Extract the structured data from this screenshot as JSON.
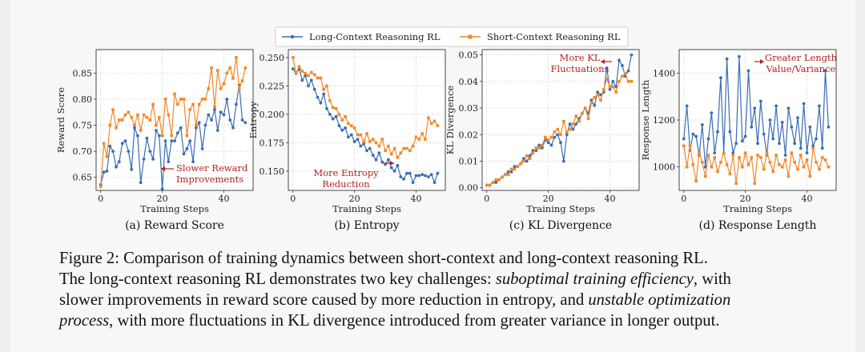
{
  "legend": {
    "long_label": "Long-Context Reasoning RL",
    "short_label": "Short-Context Reasoning RL",
    "long_color": "#3a6db5",
    "short_color": "#f08a2c"
  },
  "chart_data": [
    {
      "type": "line",
      "id": "reward",
      "subtitle": "(a) Reward Score",
      "xlabel": "Training Steps",
      "ylabel": "Reward Score",
      "xlim": [
        -1.5,
        49.5
      ],
      "ylim": [
        0.625,
        0.895
      ],
      "xticks": [
        0,
        20,
        40
      ],
      "yticks": [
        0.65,
        0.7,
        0.75,
        0.8,
        0.85
      ],
      "ytick_labels": [
        "0.65",
        "0.70",
        "0.75",
        "0.80",
        "0.85"
      ],
      "grid": true,
      "x": [
        0,
        1,
        2,
        3,
        4,
        5,
        6,
        7,
        8,
        9,
        10,
        11,
        12,
        13,
        14,
        15,
        16,
        17,
        18,
        19,
        20,
        21,
        22,
        23,
        24,
        25,
        26,
        27,
        28,
        29,
        30,
        31,
        32,
        33,
        34,
        35,
        36,
        37,
        38,
        39,
        40,
        41,
        42,
        43,
        44,
        45,
        46,
        47
      ],
      "series": [
        {
          "name": "Long-Context Reasoning RL",
          "values": [
            0.636,
            0.66,
            0.662,
            0.71,
            0.7,
            0.67,
            0.68,
            0.715,
            0.72,
            0.7,
            0.665,
            0.745,
            0.73,
            0.64,
            0.685,
            0.725,
            0.7,
            0.685,
            0.74,
            0.73,
            0.628,
            0.72,
            0.68,
            0.72,
            0.72,
            0.735,
            0.745,
            0.695,
            0.705,
            0.72,
            0.68,
            0.745,
            0.755,
            0.705,
            0.75,
            0.77,
            0.76,
            0.78,
            0.74,
            0.775,
            0.77,
            0.8,
            0.76,
            0.745,
            0.79,
            0.827,
            0.76,
            0.755
          ]
        },
        {
          "name": "Short-Context Reasoning RL",
          "values": [
            0.632,
            0.715,
            0.69,
            0.75,
            0.78,
            0.745,
            0.76,
            0.76,
            0.77,
            0.775,
            0.765,
            0.75,
            0.77,
            0.74,
            0.77,
            0.765,
            0.76,
            0.79,
            0.75,
            0.765,
            0.73,
            0.8,
            0.77,
            0.73,
            0.81,
            0.79,
            0.8,
            0.8,
            0.73,
            0.78,
            0.79,
            0.75,
            0.79,
            0.8,
            0.8,
            0.82,
            0.86,
            0.785,
            0.855,
            0.82,
            0.83,
            0.85,
            0.86,
            0.84,
            0.88,
            0.82,
            0.835,
            0.86
          ]
        }
      ],
      "annotation": {
        "text": [
          "Slower Reward",
          "Improvements"
        ],
        "color": "#b22222"
      }
    },
    {
      "type": "line",
      "id": "entropy",
      "subtitle": "(b) Entropy",
      "xlabel": "Training Steps",
      "ylabel": "Entropy",
      "xlim": [
        -1.5,
        49.5
      ],
      "ylim": [
        0.133,
        0.257
      ],
      "xticks": [
        0,
        20,
        40
      ],
      "yticks": [
        0.15,
        0.175,
        0.2,
        0.225,
        0.25
      ],
      "ytick_labels": [
        "0.150",
        "0.175",
        "0.200",
        "0.225",
        "0.250"
      ],
      "grid": true,
      "x": [
        0,
        1,
        2,
        3,
        4,
        5,
        6,
        7,
        8,
        9,
        10,
        11,
        12,
        13,
        14,
        15,
        16,
        17,
        18,
        19,
        20,
        21,
        22,
        23,
        24,
        25,
        26,
        27,
        28,
        29,
        30,
        31,
        32,
        33,
        34,
        35,
        36,
        37,
        38,
        39,
        40,
        41,
        42,
        43,
        44,
        45,
        46,
        47
      ],
      "series": [
        {
          "name": "Long-Context Reasoning RL",
          "values": [
            0.24,
            0.236,
            0.24,
            0.23,
            0.234,
            0.225,
            0.23,
            0.222,
            0.215,
            0.21,
            0.218,
            0.205,
            0.2,
            0.196,
            0.198,
            0.19,
            0.186,
            0.188,
            0.18,
            0.182,
            0.176,
            0.178,
            0.172,
            0.174,
            0.168,
            0.17,
            0.164,
            0.16,
            0.166,
            0.158,
            0.156,
            0.16,
            0.153,
            0.15,
            0.155,
            0.145,
            0.143,
            0.148,
            0.148,
            0.14,
            0.146,
            0.146,
            0.147,
            0.146,
            0.145,
            0.147,
            0.14,
            0.148
          ]
        },
        {
          "name": "Short-Context Reasoning RL",
          "values": [
            0.25,
            0.236,
            0.242,
            0.238,
            0.236,
            0.234,
            0.237,
            0.235,
            0.232,
            0.232,
            0.222,
            0.225,
            0.212,
            0.206,
            0.205,
            0.2,
            0.195,
            0.198,
            0.192,
            0.19,
            0.188,
            0.182,
            0.182,
            0.176,
            0.183,
            0.176,
            0.178,
            0.175,
            0.172,
            0.178,
            0.168,
            0.172,
            0.165,
            0.17,
            0.162,
            0.166,
            0.17,
            0.17,
            0.168,
            0.172,
            0.18,
            0.178,
            0.183,
            0.178,
            0.197,
            0.192,
            0.194,
            0.19
          ]
        }
      ],
      "annotation": {
        "text": [
          "More Entropy",
          "Reduction"
        ],
        "color": "#b22222"
      }
    },
    {
      "type": "line",
      "id": "kl",
      "subtitle": "(c) KL Divergence",
      "xlabel": "Training Steps",
      "ylabel": "KL Divergence",
      "xlim": [
        -1.5,
        49.5
      ],
      "ylim": [
        -0.001,
        0.052
      ],
      "xticks": [
        0,
        20,
        40
      ],
      "yticks": [
        0.0,
        0.01,
        0.02,
        0.03,
        0.04,
        0.05
      ],
      "ytick_labels": [
        "0.00",
        "0.01",
        "0.02",
        "0.03",
        "0.04",
        "0.05"
      ],
      "grid": true,
      "x": [
        0,
        1,
        2,
        3,
        4,
        5,
        6,
        7,
        8,
        9,
        10,
        11,
        12,
        13,
        14,
        15,
        16,
        17,
        18,
        19,
        20,
        21,
        22,
        23,
        24,
        25,
        26,
        27,
        28,
        29,
        30,
        31,
        32,
        33,
        34,
        35,
        36,
        37,
        38,
        39,
        40,
        41,
        42,
        43,
        44,
        45,
        46,
        47
      ],
      "series": [
        {
          "name": "Long-Context Reasoning RL",
          "values": [
            0.001,
            0.001,
            0.002,
            0.002,
            0.003,
            0.004,
            0.005,
            0.006,
            0.006,
            0.008,
            0.008,
            0.009,
            0.011,
            0.01,
            0.012,
            0.014,
            0.014,
            0.016,
            0.015,
            0.018,
            0.017,
            0.016,
            0.019,
            0.02,
            0.017,
            0.01,
            0.02,
            0.024,
            0.022,
            0.024,
            0.026,
            0.028,
            0.03,
            0.028,
            0.033,
            0.031,
            0.036,
            0.035,
            0.036,
            0.045,
            0.037,
            0.04,
            0.038,
            0.048,
            0.046,
            0.042,
            0.044,
            0.05
          ]
        },
        {
          "name": "Short-Context Reasoning RL",
          "values": [
            0.001,
            0.001,
            0.002,
            0.003,
            0.003,
            0.004,
            0.005,
            0.005,
            0.007,
            0.007,
            0.008,
            0.009,
            0.01,
            0.012,
            0.011,
            0.013,
            0.015,
            0.015,
            0.016,
            0.019,
            0.018,
            0.019,
            0.021,
            0.022,
            0.02,
            0.025,
            0.021,
            0.022,
            0.024,
            0.027,
            0.025,
            0.028,
            0.03,
            0.026,
            0.032,
            0.034,
            0.035,
            0.033,
            0.037,
            0.041,
            0.038,
            0.038,
            0.036,
            0.04,
            0.042,
            0.043,
            0.04,
            0.04
          ]
        }
      ],
      "annotation": {
        "text": [
          "More KL",
          "Fluctuations"
        ],
        "color": "#b22222"
      }
    },
    {
      "type": "line",
      "id": "resp",
      "subtitle": "(d) Response Length",
      "xlabel": "Training Steps",
      "ylabel": "Response Length",
      "xlim": [
        -1.5,
        49.5
      ],
      "ylim": [
        900,
        1500
      ],
      "xticks": [
        0,
        20,
        40
      ],
      "yticks": [
        1000,
        1200,
        1400
      ],
      "ytick_labels": [
        "1000",
        "1200",
        "1400"
      ],
      "grid": true,
      "x": [
        0,
        1,
        2,
        3,
        4,
        5,
        6,
        7,
        8,
        9,
        10,
        11,
        12,
        13,
        14,
        15,
        16,
        17,
        18,
        19,
        20,
        21,
        22,
        23,
        24,
        25,
        26,
        27,
        28,
        29,
        30,
        31,
        32,
        33,
        34,
        35,
        36,
        37,
        38,
        39,
        40,
        41,
        42,
        43,
        44,
        45,
        46,
        47
      ],
      "series": [
        {
          "name": "Long-Context Reasoning RL",
          "values": [
            1120,
            1260,
            1070,
            1140,
            1130,
            1050,
            1180,
            1000,
            1120,
            1230,
            1060,
            1150,
            1380,
            1060,
            1460,
            1150,
            1060,
            1100,
            1470,
            1110,
            1130,
            1410,
            1170,
            1250,
            1100,
            1280,
            1140,
            1050,
            1200,
            1120,
            1260,
            1100,
            1190,
            1050,
            1250,
            1170,
            1100,
            1210,
            1080,
            1270,
            1060,
            1170,
            1090,
            1120,
            1260,
            1080,
            1410,
            1170
          ]
        },
        {
          "name": "Short-Context Reasoning RL",
          "values": [
            1090,
            1000,
            1090,
            1010,
            940,
            1060,
            1020,
            960,
            1050,
            1000,
            1040,
            980,
            1020,
            1060,
            1010,
            970,
            1050,
            930,
            1040,
            1000,
            1060,
            1010,
            1040,
            930,
            1050,
            1040,
            990,
            1060,
            1020,
            980,
            1050,
            1010,
            1000,
            1030,
            960,
            1060,
            1020,
            990,
            1050,
            1000,
            1030,
            960,
            1080,
            1020,
            990,
            1040,
            1030,
            1000
          ]
        }
      ],
      "annotation": {
        "text": [
          "Greater Length",
          "Value/Variance"
        ],
        "color": "#b22222"
      }
    }
  ],
  "caption": {
    "line1": "Figure 2: Comparison of training dynamics between short-context and long-context reasoning RL.",
    "line2a": "The long-context reasoning RL demonstrates two key challenges: ",
    "line2b": "suboptimal training efficiency",
    "line2c": ", with",
    "line3a": "slower improvements in reward score caused by more reduction in entropy, and ",
    "line3b": "unstable optimization",
    "line4a": "process",
    "line4b": ", with more fluctuations in KL divergence introduced from greater variance in longer output."
  }
}
